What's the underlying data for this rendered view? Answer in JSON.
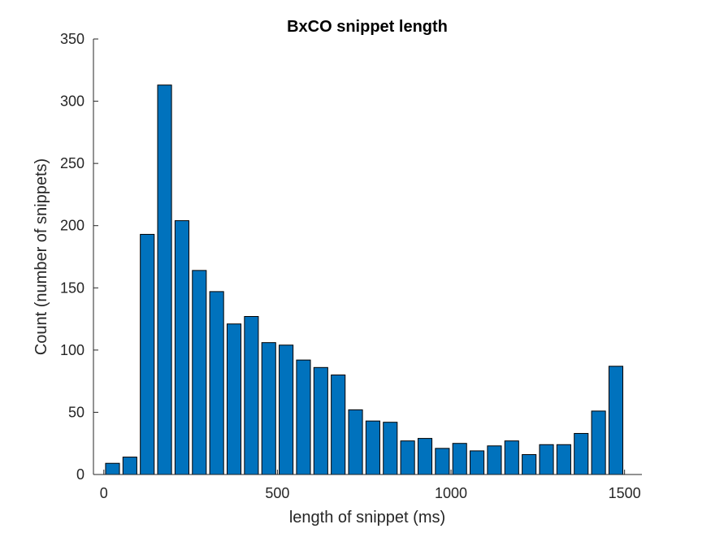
{
  "chart_data": {
    "type": "bar",
    "title": "BxCO snippet length",
    "xlabel": "length of snippet (ms)",
    "ylabel": "Count (number of snippets)",
    "xlim": [
      -30,
      1550
    ],
    "ylim": [
      0,
      350
    ],
    "bin_width": 50,
    "x": [
      25,
      75,
      125,
      175,
      225,
      275,
      325,
      375,
      425,
      475,
      525,
      575,
      625,
      675,
      725,
      775,
      825,
      875,
      925,
      975,
      1025,
      1075,
      1125,
      1175,
      1225,
      1275,
      1325,
      1375,
      1425,
      1475
    ],
    "values": [
      9,
      14,
      193,
      313,
      204,
      164,
      147,
      121,
      127,
      106,
      104,
      92,
      86,
      80,
      52,
      43,
      42,
      27,
      29,
      21,
      25,
      19,
      23,
      27,
      16,
      24,
      24,
      33,
      51,
      87
    ],
    "xticks": [
      0,
      500,
      1000,
      1500
    ],
    "xtick_labels": [
      "0",
      "500",
      "1000",
      "1500"
    ],
    "yticks": [
      0,
      50,
      100,
      150,
      200,
      250,
      300,
      350
    ],
    "ytick_labels": [
      "0",
      "50",
      "100",
      "150",
      "200",
      "250",
      "300",
      "350"
    ],
    "bar_color": "#0072BD",
    "edge_color": "#000000",
    "grid": false,
    "legend": false
  }
}
